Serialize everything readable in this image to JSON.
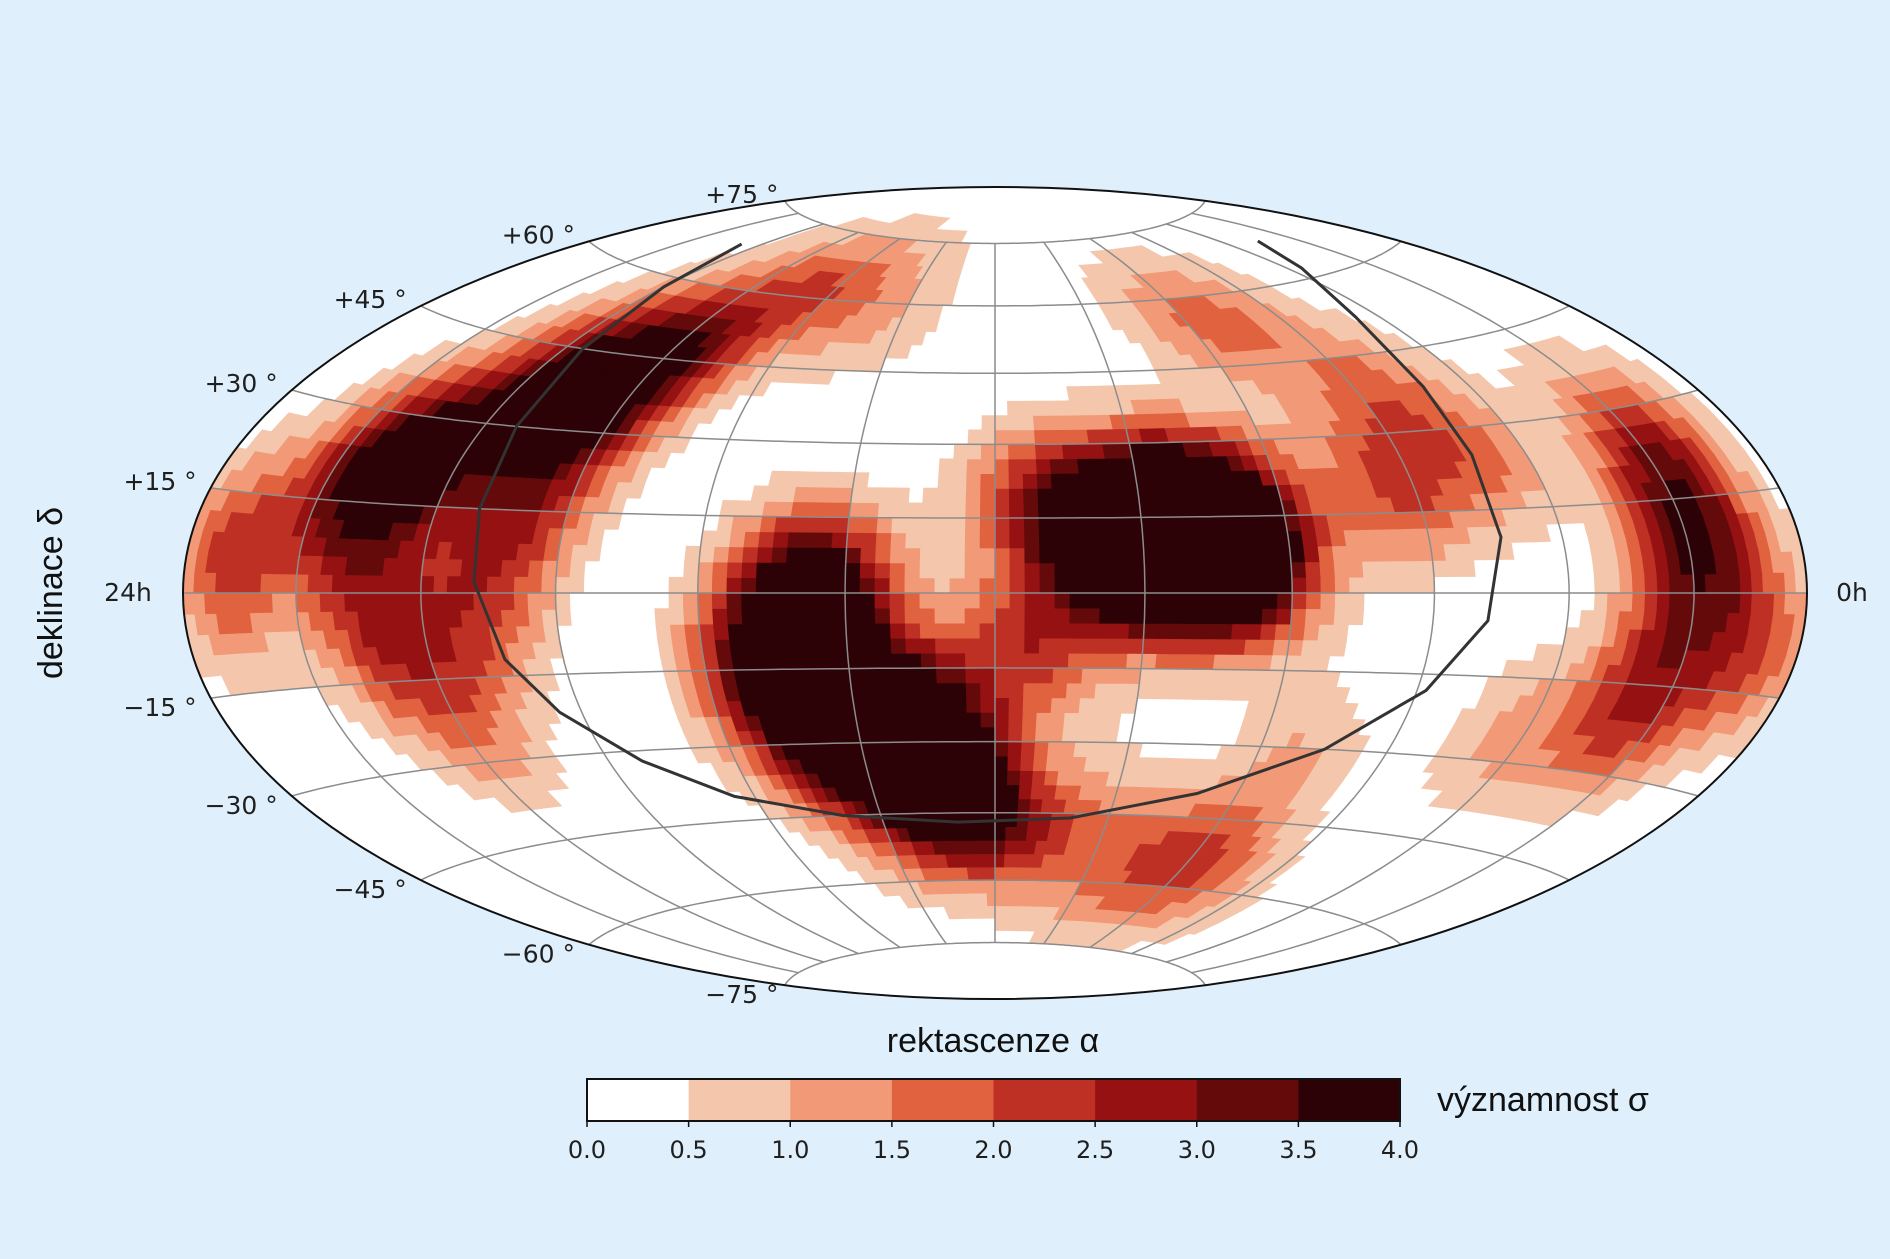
{
  "chart_data": {
    "type": "heatmap",
    "projection": "aitoff-hammer",
    "xlabel": "rektascenze α",
    "ylabel": "deklinace δ",
    "ra_left_label": "24h",
    "ra_right_label": "0h",
    "dec_ticks": [
      {
        "value": 75,
        "label": "+75 °"
      },
      {
        "value": 60,
        "label": "+60 °"
      },
      {
        "value": 45,
        "label": "+45 °"
      },
      {
        "value": 30,
        "label": "+30 °"
      },
      {
        "value": 15,
        "label": "+15 °"
      },
      {
        "value": -15,
        "label": "−15 °"
      },
      {
        "value": -30,
        "label": "−30 °"
      },
      {
        "value": -45,
        "label": "−45 °"
      },
      {
        "value": -60,
        "label": "−60 °"
      },
      {
        "value": -75,
        "label": "−75 °"
      }
    ],
    "grid": true,
    "colorbar": {
      "label": "významnost σ",
      "ticks": [
        "0.0",
        "0.5",
        "1.0",
        "1.5",
        "2.0",
        "2.5",
        "3.0",
        "3.5",
        "4.0"
      ],
      "colors": [
        "#ffffff",
        "#f4c7ad",
        "#f29a77",
        "#e0623f",
        "#bf3024",
        "#961212",
        "#650a0a",
        "#2c0206"
      ]
    },
    "hotspots": [
      {
        "lon": 44,
        "lat": 6,
        "sigma": 3.2
      },
      {
        "lon": 27,
        "lat": 14,
        "sigma": 2.8
      },
      {
        "lon": 38,
        "lat": 12,
        "sigma": 1.6
      },
      {
        "lon": 50,
        "lat": 16,
        "sigma": 1.6
      },
      {
        "lon": 8,
        "lat": 19,
        "sigma": 1.8
      },
      {
        "lon": 7,
        "lat": -10,
        "sigma": 2.1
      },
      {
        "lon": 21,
        "lat": 9,
        "sigma": 1.3
      },
      {
        "lon": 30,
        "lat": 3,
        "sigma": 1.2
      },
      {
        "lon": 56,
        "lat": 4,
        "sigma": 1.4
      },
      {
        "lon": -45,
        "lat": -12,
        "sigma": 3.1
      },
      {
        "lon": -38,
        "lat": -22,
        "sigma": 2.9
      },
      {
        "lon": -25,
        "lat": -30,
        "sigma": 3.0
      },
      {
        "lon": -13,
        "lat": -38,
        "sigma": 2.6
      },
      {
        "lon": -18,
        "lat": -25,
        "sigma": 1.9
      },
      {
        "lon": -3,
        "lat": -48,
        "sigma": 2.0
      },
      {
        "lon": -33,
        "lat": 0,
        "sigma": 2.1
      },
      {
        "lon": -38,
        "lat": 5,
        "sigma": 1.6
      },
      {
        "lon": -105,
        "lat": 40,
        "sigma": 3.1
      },
      {
        "lon": -95,
        "lat": 35,
        "sigma": 2.0
      },
      {
        "lon": -127,
        "lat": 24,
        "sigma": 2.3
      },
      {
        "lon": -100,
        "lat": 14,
        "sigma": 2.0
      },
      {
        "lon": -140,
        "lat": 18,
        "sigma": 3.1
      },
      {
        "lon": -168,
        "lat": 5,
        "sigma": 2.2
      },
      {
        "lon": -130,
        "lat": -7,
        "sigma": 2.1
      },
      {
        "lon": -108,
        "lat": -5,
        "sigma": 1.6
      },
      {
        "lon": -118,
        "lat": -25,
        "sigma": 1.2
      },
      {
        "lon": -82,
        "lat": 48,
        "sigma": 1.3
      },
      {
        "lon": -70,
        "lat": 65,
        "sigma": 1.2
      },
      {
        "lon": -40,
        "lat": 56,
        "sigma": 1.0
      },
      {
        "lon": 66,
        "lat": 55,
        "sigma": 1.6
      },
      {
        "lon": 95,
        "lat": 40,
        "sigma": 1.2
      },
      {
        "lon": 86,
        "lat": 20,
        "sigma": 2.0
      },
      {
        "lon": 110,
        "lat": 24,
        "sigma": 1.3
      },
      {
        "lon": 153,
        "lat": 20,
        "sigma": 2.8
      },
      {
        "lon": 150,
        "lat": 3,
        "sigma": 2.0
      },
      {
        "lon": 142,
        "lat": -18,
        "sigma": 2.4
      },
      {
        "lon": 168,
        "lat": -8,
        "sigma": 1.8
      },
      {
        "lon": 115,
        "lat": -25,
        "sigma": 1.0
      },
      {
        "lon": 60,
        "lat": -55,
        "sigma": 2.2
      },
      {
        "lon": 28,
        "lat": -45,
        "sigma": 1.0
      },
      {
        "lon": 40,
        "lat": 15,
        "sigma": 2.2
      },
      {
        "lon": 70,
        "lat": -30,
        "sigma": 0.9
      }
    ],
    "curve_label": ""
  }
}
